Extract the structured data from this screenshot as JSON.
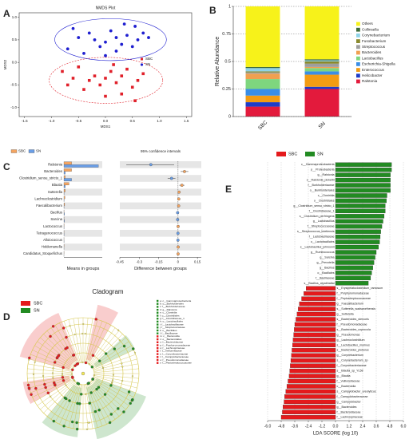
{
  "chart_data": [
    {
      "type": "scatter",
      "panel": "A",
      "title": "NMDS Plot",
      "xlabel": "MDS1",
      "ylabel": "MDS2",
      "xlim": [
        -1.6,
        1.6
      ],
      "ylim": [
        -1.2,
        1.1
      ],
      "xticks": [
        -1.5,
        {
          "value": -1.0,
          "label": "-1.0"
        },
        -0.5,
        {
          "value": 0,
          "label": "0.0"
        },
        0.5,
        {
          "value": 1.0,
          "label": "1.0"
        },
        1.5
      ],
      "yticks": [
        {
          "value": -1.0,
          "label": "-1.0"
        },
        -0.5,
        {
          "value": 0,
          "label": "0.0"
        },
        0.5,
        {
          "value": 1.0,
          "label": "1.0"
        }
      ],
      "series": [
        {
          "name": "SBC",
          "color": "#e0202a",
          "marker": "square",
          "x": [
            -0.8,
            -0.6,
            -0.5,
            -0.3,
            -0.2,
            -0.1,
            0.0,
            0.1,
            0.2,
            0.3,
            0.4,
            0.5,
            0.6,
            0.7,
            -0.4,
            0.0,
            0.3,
            0.55,
            -0.7,
            0.15
          ],
          "y": [
            -0.2,
            -0.35,
            -0.1,
            -0.4,
            -0.3,
            -0.5,
            -0.35,
            -0.2,
            -0.45,
            -0.3,
            -0.15,
            -0.55,
            -0.4,
            -0.25,
            -0.6,
            -0.75,
            -0.7,
            -0.85,
            -0.5,
            -0.05
          ]
        },
        {
          "name": "SN",
          "color": "#1f1fd0",
          "marker": "circle",
          "x": [
            -0.6,
            -0.5,
            -0.3,
            -0.2,
            0.0,
            0.1,
            0.2,
            0.3,
            0.4,
            0.5,
            0.6,
            0.7,
            -0.7,
            -0.4,
            0.2,
            0.8,
            0.0,
            -0.1,
            0.35,
            0.55
          ],
          "y": [
            0.75,
            0.55,
            0.65,
            0.5,
            0.45,
            0.7,
            0.55,
            0.4,
            0.6,
            0.35,
            0.5,
            0.65,
            0.3,
            0.2,
            0.25,
            0.55,
            0.15,
            0.35,
            0.85,
            0.8
          ]
        }
      ]
    },
    {
      "type": "stacked",
      "panel": "B",
      "ylabel": "Relative Abundance",
      "categories": [
        "SBC",
        "SN"
      ],
      "ylim": [
        0,
        1
      ],
      "yticks": [
        0,
        0.25,
        0.5,
        0.75,
        1
      ],
      "grid": true,
      "series": [
        {
          "name": "Others",
          "color": "#f7f21a",
          "values": [
            0.55,
            0.48
          ]
        },
        {
          "name": "Collinsella",
          "color": "#3d6b3a",
          "values": [
            0.01,
            0.01
          ]
        },
        {
          "name": "Corynebacterium",
          "color": "#8fd3e8",
          "values": [
            0.03,
            0.01
          ]
        },
        {
          "name": "Fusobacterium",
          "color": "#8a8a2e",
          "values": [
            0.01,
            0.02
          ]
        },
        {
          "name": "Streptococcus",
          "color": "#9e9e9e",
          "values": [
            0.01,
            0.03
          ]
        },
        {
          "name": "Bacteroides",
          "color": "#f0a050",
          "values": [
            0.05,
            0.01
          ]
        },
        {
          "name": "Lactobacillus",
          "color": "#7ed67e",
          "values": [
            0.09,
            0.03
          ]
        },
        {
          "name": "Escherichia-Shigella",
          "color": "#3a8ee6",
          "values": [
            0.06,
            0.03
          ]
        },
        {
          "name": "Enterococcus",
          "color": "#f39c12",
          "values": [
            0.06,
            0.11
          ]
        },
        {
          "name": "Helicobacter",
          "color": "#1e3cc8",
          "values": [
            0.04,
            0.02
          ]
        },
        {
          "name": "Ralstonia",
          "color": "#e31a3c",
          "values": [
            0.09,
            0.25
          ]
        }
      ]
    },
    {
      "type": "errorbar",
      "panel": "C",
      "title": "95% confidence intervals",
      "xlabel": "Means in groups",
      "categories": [
        "Ralstonia",
        "Bacteroides",
        "Clostridium_sensu_stricto_1",
        "Blautia",
        "Sutterella",
        "Lachnoclostridium",
        "Faecalibacterium",
        "Bacillus",
        "Sarcina",
        "Lactococcus",
        "Tetragenococcus",
        "Alloiococcus",
        "Holdemanella",
        "Candidatus_Stoquefichus"
      ],
      "xlim": [
        0,
        0.3
      ],
      "series": [
        {
          "name": "SBC",
          "color": "#f4a460",
          "values": [
            0.06,
            0.06,
            0.01,
            0.04,
            0.01,
            0.008,
            0.006,
            0.001,
            0.001,
            0.002,
            0.001,
            0.0005,
            0.002,
            0.001
          ]
        },
        {
          "name": "SN",
          "color": "#6a9ee6",
          "values": [
            0.27,
            0.01,
            0.06,
            0.01,
            0.002,
            0.002,
            0.001,
            0.004,
            0.004,
            0.001,
            0.0015,
            0.001,
            0.0005,
            0.0003
          ]
        }
      ],
      "diff": {
        "xlabel": "Difference between groups",
        "xlim": [
          -0.45,
          0.18
        ],
        "xticks": [
          -0.45,
          -0.3,
          -0.15,
          0,
          0.15
        ],
        "values": [
          -0.21,
          0.05,
          -0.05,
          0.03,
          0.008,
          0.006,
          0.005,
          -0.003,
          -0.003,
          0.001,
          -0.0005,
          -0.0005,
          0.0015,
          0.0007
        ],
        "ci_low": [
          -0.4,
          0.02,
          -0.08,
          0.01,
          0.002,
          0.002,
          0.001,
          -0.006,
          -0.006,
          -0.001,
          -0.002,
          -0.002,
          0.0002,
          0.0001
        ],
        "ci_high": [
          -0.03,
          0.08,
          -0.02,
          0.05,
          0.014,
          0.01,
          0.009,
          -0.0005,
          -0.0005,
          0.003,
          0.001,
          0.001,
          0.003,
          0.0013
        ]
      }
    },
    {
      "type": "cladogram",
      "panel": "D",
      "title": "Cladogram",
      "series": [
        {
          "name": "SBC",
          "color": "#e41a1c"
        },
        {
          "name": "SN",
          "color": "#228b22"
        }
      ],
      "clade_labels": [
        {
          "label": "a: c__Gammaproteobacteria",
          "group": "SN"
        },
        {
          "label": "b: o__Burkholderiales",
          "group": "SN"
        },
        {
          "label": "c: f__Burkholderiaceae",
          "group": "SN"
        },
        {
          "label": "d: g__Ralstonia",
          "group": "SN"
        },
        {
          "label": "e: c__Clostridia",
          "group": "SN"
        },
        {
          "label": "f: o__Clostridiales",
          "group": "SN"
        },
        {
          "label": "g: f__Clostridiaceae_1",
          "group": "SN"
        },
        {
          "label": "h: o__Lactobacillales",
          "group": "SN"
        },
        {
          "label": "i: f__Lactobacillaceae",
          "group": "SN"
        },
        {
          "label": "j: f__Streptococcaceae",
          "group": "SN"
        },
        {
          "label": "k: o__Bacillales",
          "group": "SN"
        },
        {
          "label": "l: f__Bacillaceae",
          "group": "SN"
        },
        {
          "label": "m: c__Bacteroidia",
          "group": "SBC"
        },
        {
          "label": "n: o__Bacteroidales",
          "group": "SBC"
        },
        {
          "label": "o: f__Bacteroidaceae",
          "group": "SBC"
        },
        {
          "label": "p: f__Porphyromonadaceae",
          "group": "SBC"
        },
        {
          "label": "q: f__Lachnospiraceae",
          "group": "SBC"
        },
        {
          "label": "r: f__Veillonellaceae",
          "group": "SBC"
        },
        {
          "label": "s: f__Corynebacteriaceae",
          "group": "SBC"
        },
        {
          "label": "t: f__Campylobacteraceae",
          "group": "SBC"
        },
        {
          "label": "u: f__Pseudomonadaceae",
          "group": "SBC"
        },
        {
          "label": "v: f__Peptostreptococcaceae",
          "group": "SBC"
        }
      ]
    },
    {
      "type": "lda",
      "panel": "E",
      "xlabel": "LDA SCORE (log 10)",
      "xlim": [
        -6.0,
        6.0
      ],
      "grid": true,
      "xticks": [
        {
          "value": -6.0,
          "label": "-6.0"
        },
        -4.8,
        -3.6,
        -2.4,
        -1.2,
        {
          "value": 0,
          "label": "0.0"
        },
        1.2,
        2.4,
        3.6,
        4.8,
        {
          "value": 6.0,
          "label": "6.0"
        }
      ],
      "series": [
        {
          "name": "SBC",
          "color": "#e41a1c",
          "categories": [
            "s__Erysipelatoclostridium_ramosum",
            "f__Porphyromonadaceae",
            "f__Peptostreptococcaceae",
            "g__Faecalibacterium",
            "s__Sutterella_wadsworthensis",
            "g__Sutterella",
            "s__Bacteroides_stercoris",
            "f__Pseudomonadaceae",
            "s__Bacteroides_coprocola",
            "g__Pseudomonas",
            "g__Lachnoclostridium",
            "s__Lactobacillus_murinus",
            "s__Bacteroides_plebeius",
            "g__Corynebacterium",
            "s__Corynebacterium_sp",
            "f__Corynebacteriaceae",
            "s__Blautia_sp_YL58",
            "g__Blautia",
            "f__Veillonellaceae",
            "c__Bacteroidia",
            "s__Campylobacter_ureolyticus",
            "f__Campylobacteraceae",
            "g__Campylobacter",
            "g__Bacteroides",
            "f__Bacteroidaceae",
            "f__Lachnospiraceae"
          ],
          "values": [
            -2.6,
            -2.8,
            -3.0,
            -3.2,
            -3.3,
            -3.4,
            -3.5,
            -3.6,
            -3.65,
            -3.7,
            -3.75,
            -3.8,
            -3.85,
            -3.9,
            -3.95,
            -4.0,
            -4.05,
            -4.1,
            -4.2,
            -4.3,
            -4.4,
            -4.5,
            -4.55,
            -4.65,
            -4.7,
            -4.8
          ]
        },
        {
          "name": "SN",
          "color": "#228b22",
          "categories": [
            "c__Gammaproteobacteria",
            "p__Proteobacteria",
            "g__Ralstonia",
            "s__Ralstonia_pickettii",
            "f__Burkholderiaceae",
            "o__Burkholderiales",
            "c__Clostridia",
            "o__Clostridiales",
            "g__Clostridium_sensu_stricto_1",
            "f__Clostridiaceae_1",
            "s__Clostridium_perfringens",
            "g__Lactobacillus",
            "f__Streptococcaceae",
            "s__Streptococcus_lutetiensis",
            "f__Lactobacillaceae",
            "o__Lactobacillales",
            "s__Lactobacillus_johnsonii",
            "g__Ruminococcus",
            "g__Sarcina",
            "g__Prevotella",
            "g__Bacillus",
            "o__Bacillales",
            "f__Bacillaceae",
            "s__Bacillus_aryabhattai"
          ],
          "values": [
            4.95,
            4.95,
            4.85,
            4.85,
            4.85,
            4.85,
            4.55,
            4.5,
            4.4,
            4.4,
            4.3,
            4.2,
            4.1,
            4.0,
            3.95,
            3.9,
            3.8,
            3.6,
            3.5,
            3.4,
            3.3,
            3.2,
            3.1,
            2.9
          ]
        }
      ]
    }
  ]
}
